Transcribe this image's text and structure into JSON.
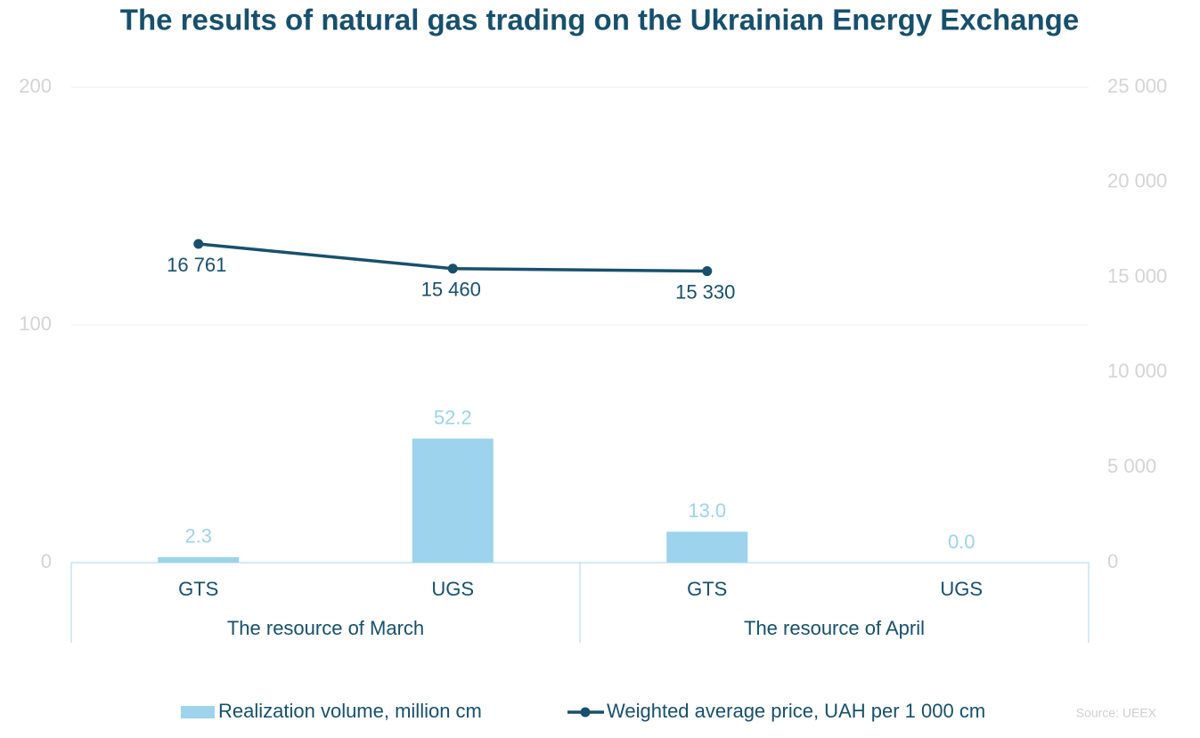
{
  "chart_data": {
    "type": "bar-line",
    "title": "The results of natural gas trading on the Ukrainian Energy Exchange",
    "groups": [
      {
        "label": "The resource of March",
        "categories": [
          "GTS",
          "UGS"
        ]
      },
      {
        "label": "The resource of April",
        "categories": [
          "GTS",
          "UGS"
        ]
      }
    ],
    "series": [
      {
        "name": "Realization volume, million cm",
        "type": "bar",
        "color": "#9dd3ec",
        "values": [
          2.3,
          52.2,
          13.0,
          0.0
        ],
        "value_labels": [
          "2.3",
          "52.2",
          "13.0",
          "0.0"
        ]
      },
      {
        "name": "Weighted average price, UAH per 1 000 cm",
        "type": "line",
        "axis": "y2",
        "color": "#17506d",
        "values": [
          16761,
          15460,
          15330,
          null
        ],
        "value_labels": [
          "16 761",
          "15 460",
          "15 330",
          null
        ]
      }
    ],
    "ylim": [
      0,
      200
    ],
    "yticks": [
      0,
      100,
      200
    ],
    "y2lim": [
      0,
      25000
    ],
    "y2ticks": [
      0,
      {
        "value": 5000,
        "label": "5 000"
      },
      {
        "value": 10000,
        "label": "10 000"
      },
      {
        "value": 15000,
        "label": "15 000"
      },
      {
        "value": 20000,
        "label": "20 000"
      },
      {
        "value": 25000,
        "label": "25 000"
      }
    ],
    "grid": true,
    "legend": "bottom",
    "source": "Source: UEEX"
  }
}
